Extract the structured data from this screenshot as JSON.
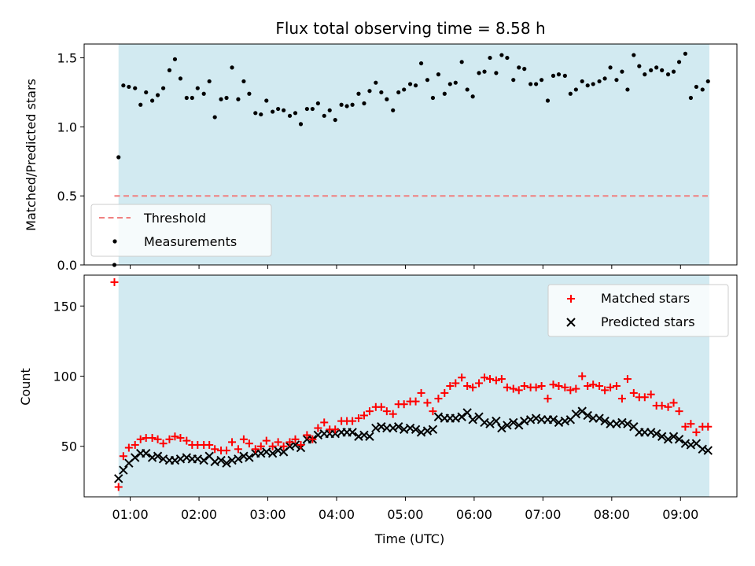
{
  "title": "Flux total observing time = 8.58 h",
  "xlabel": "Time (UTC)",
  "x_ticks": [
    "01:00",
    "02:00",
    "03:00",
    "04:00",
    "05:00",
    "06:00",
    "07:00",
    "08:00",
    "09:00"
  ],
  "colors": {
    "band": "#add8e6",
    "threshold": "#f08080",
    "measure": "#000000",
    "matched": "#ff0000",
    "predicted": "#000000"
  },
  "chart_data": [
    {
      "type": "scatter",
      "panel": "top",
      "ylabel": "Matched/Predicted stars",
      "xlim_hours": [
        0.33,
        9.82
      ],
      "ylim": [
        0,
        1.6
      ],
      "y_ticks": [
        "0.0",
        "0.5",
        "1.0",
        "1.5"
      ],
      "y_tick_values": [
        0,
        0.5,
        1.0,
        1.5
      ],
      "shaded_range_hours": [
        0.83,
        9.42
      ],
      "threshold": {
        "label": "Threshold",
        "value": 0.5,
        "x_range_hours": [
          0.77,
          9.42
        ]
      },
      "legend": {
        "location": "lower-left",
        "entries": [
          "Threshold",
          "Measurements"
        ]
      },
      "measurements": {
        "name": "Measurements",
        "x_hours": [
          0.77,
          0.83,
          0.9,
          0.98,
          1.07,
          1.15,
          1.23,
          1.32,
          1.4,
          1.48,
          1.57,
          1.65,
          1.73,
          1.82,
          1.9,
          1.98,
          2.07,
          2.15,
          2.23,
          2.32,
          2.4,
          2.48,
          2.57,
          2.65,
          2.73,
          2.82,
          2.9,
          2.98,
          3.07,
          3.15,
          3.23,
          3.32,
          3.4,
          3.48,
          3.57,
          3.65,
          3.73,
          3.82,
          3.9,
          3.98,
          4.07,
          4.15,
          4.23,
          4.32,
          4.4,
          4.48,
          4.57,
          4.65,
          4.73,
          4.82,
          4.9,
          4.98,
          5.07,
          5.15,
          5.23,
          5.32,
          5.4,
          5.48,
          5.57,
          5.65,
          5.73,
          5.82,
          5.9,
          5.98,
          6.07,
          6.15,
          6.23,
          6.32,
          6.4,
          6.48,
          6.57,
          6.65,
          6.73,
          6.82,
          6.9,
          6.98,
          7.07,
          7.15,
          7.23,
          7.32,
          7.4,
          7.48,
          7.57,
          7.65,
          7.73,
          7.82,
          7.9,
          7.98,
          8.07,
          8.15,
          8.23,
          8.32,
          8.4,
          8.48,
          8.57,
          8.65,
          8.73,
          8.82,
          8.9,
          8.98,
          9.07,
          9.15,
          9.23,
          9.32,
          9.4
        ],
        "y": [
          0.0,
          0.78,
          1.3,
          1.29,
          1.28,
          1.16,
          1.25,
          1.19,
          1.23,
          1.28,
          1.41,
          1.49,
          1.35,
          1.21,
          1.21,
          1.28,
          1.24,
          1.33,
          1.07,
          1.2,
          1.21,
          1.43,
          1.2,
          1.33,
          1.24,
          1.1,
          1.09,
          1.19,
          1.11,
          1.13,
          1.12,
          1.08,
          1.1,
          1.02,
          1.13,
          1.13,
          1.17,
          1.08,
          1.12,
          1.05,
          1.16,
          1.15,
          1.16,
          1.24,
          1.17,
          1.26,
          1.32,
          1.25,
          1.2,
          1.12,
          1.25,
          1.27,
          1.31,
          1.3,
          1.46,
          1.34,
          1.21,
          1.38,
          1.24,
          1.31,
          1.32,
          1.47,
          1.27,
          1.22,
          1.39,
          1.4,
          1.5,
          1.39,
          1.52,
          1.5,
          1.34,
          1.43,
          1.42,
          1.31,
          1.31,
          1.34,
          1.19,
          1.37,
          1.38,
          1.37,
          1.24,
          1.27,
          1.33,
          1.3,
          1.31,
          1.33,
          1.35,
          1.43,
          1.34,
          1.4,
          1.27,
          1.52,
          1.44,
          1.38,
          1.41,
          1.43,
          1.41,
          1.38,
          1.4,
          1.47,
          1.53,
          1.21,
          1.29,
          1.27,
          1.33
        ]
      }
    },
    {
      "type": "scatter",
      "panel": "bottom",
      "ylabel": "Count",
      "xlim_hours": [
        0.33,
        9.82
      ],
      "ylim": [
        14,
        172
      ],
      "y_ticks": [
        "50",
        "100",
        "150"
      ],
      "y_tick_values": [
        50,
        100,
        150
      ],
      "shaded_range_hours": [
        0.83,
        9.42
      ],
      "legend": {
        "location": "top-right",
        "entries": [
          "Matched stars",
          "Predicted stars"
        ]
      },
      "x_hours": [
        0.77,
        0.83,
        0.9,
        0.98,
        1.07,
        1.15,
        1.23,
        1.32,
        1.4,
        1.48,
        1.57,
        1.65,
        1.73,
        1.82,
        1.9,
        1.98,
        2.07,
        2.15,
        2.23,
        2.32,
        2.4,
        2.48,
        2.57,
        2.65,
        2.73,
        2.82,
        2.9,
        2.98,
        3.07,
        3.15,
        3.23,
        3.32,
        3.4,
        3.48,
        3.57,
        3.65,
        3.73,
        3.82,
        3.9,
        3.98,
        4.07,
        4.15,
        4.23,
        4.32,
        4.4,
        4.48,
        4.57,
        4.65,
        4.73,
        4.82,
        4.9,
        4.98,
        5.07,
        5.15,
        5.23,
        5.32,
        5.4,
        5.48,
        5.57,
        5.65,
        5.73,
        5.82,
        5.9,
        5.98,
        6.07,
        6.15,
        6.23,
        6.32,
        6.4,
        6.48,
        6.57,
        6.65,
        6.73,
        6.82,
        6.9,
        6.98,
        7.07,
        7.15,
        7.23,
        7.32,
        7.4,
        7.48,
        7.57,
        7.65,
        7.73,
        7.82,
        7.9,
        7.98,
        8.07,
        8.15,
        8.23,
        8.32,
        8.4,
        8.48,
        8.57,
        8.65,
        8.73,
        8.82,
        8.9,
        8.98,
        9.07,
        9.15,
        9.23,
        9.32,
        9.4
      ],
      "series": [
        {
          "name": "Matched stars",
          "marker": "+",
          "values": [
            167,
            21,
            43,
            49,
            51,
            55,
            56,
            56,
            55,
            52,
            55,
            57,
            56,
            54,
            51,
            51,
            51,
            51,
            48,
            47,
            47,
            53,
            48,
            55,
            52,
            48,
            50,
            54,
            50,
            53,
            50,
            53,
            55,
            51,
            58,
            55,
            63,
            67,
            62,
            62,
            68,
            68,
            68,
            70,
            72,
            75,
            78,
            78,
            75,
            73,
            80,
            80,
            82,
            82,
            88,
            81,
            75,
            84,
            88,
            93,
            95,
            99,
            93,
            92,
            95,
            99,
            98,
            97,
            98,
            92,
            91,
            90,
            93,
            92,
            92,
            93,
            84,
            94,
            93,
            92,
            90,
            91,
            100,
            93,
            94,
            93,
            90,
            92,
            93,
            84,
            98,
            88,
            85,
            85,
            87,
            79,
            79,
            78,
            81,
            75,
            64,
            66,
            60,
            64,
            64
          ]
        },
        {
          "name": "Predicted stars",
          "marker": "x",
          "values": [
            null,
            27,
            33,
            38,
            42,
            45,
            45,
            42,
            43,
            41,
            40,
            40,
            41,
            42,
            41,
            41,
            40,
            43,
            39,
            40,
            38,
            40,
            41,
            43,
            42,
            45,
            45,
            46,
            45,
            47,
            46,
            50,
            51,
            49,
            55,
            55,
            58,
            59,
            59,
            59,
            60,
            60,
            60,
            57,
            58,
            57,
            63,
            64,
            63,
            63,
            64,
            62,
            63,
            62,
            60,
            61,
            62,
            71,
            70,
            70,
            70,
            71,
            74,
            69,
            71,
            67,
            66,
            68,
            63,
            65,
            67,
            65,
            68,
            69,
            70,
            69,
            69,
            69,
            67,
            68,
            69,
            73,
            75,
            72,
            70,
            70,
            68,
            66,
            66,
            67,
            66,
            64,
            60,
            60,
            60,
            59,
            57,
            55,
            57,
            55,
            52,
            51,
            52,
            48,
            47
          ]
        }
      ]
    }
  ]
}
